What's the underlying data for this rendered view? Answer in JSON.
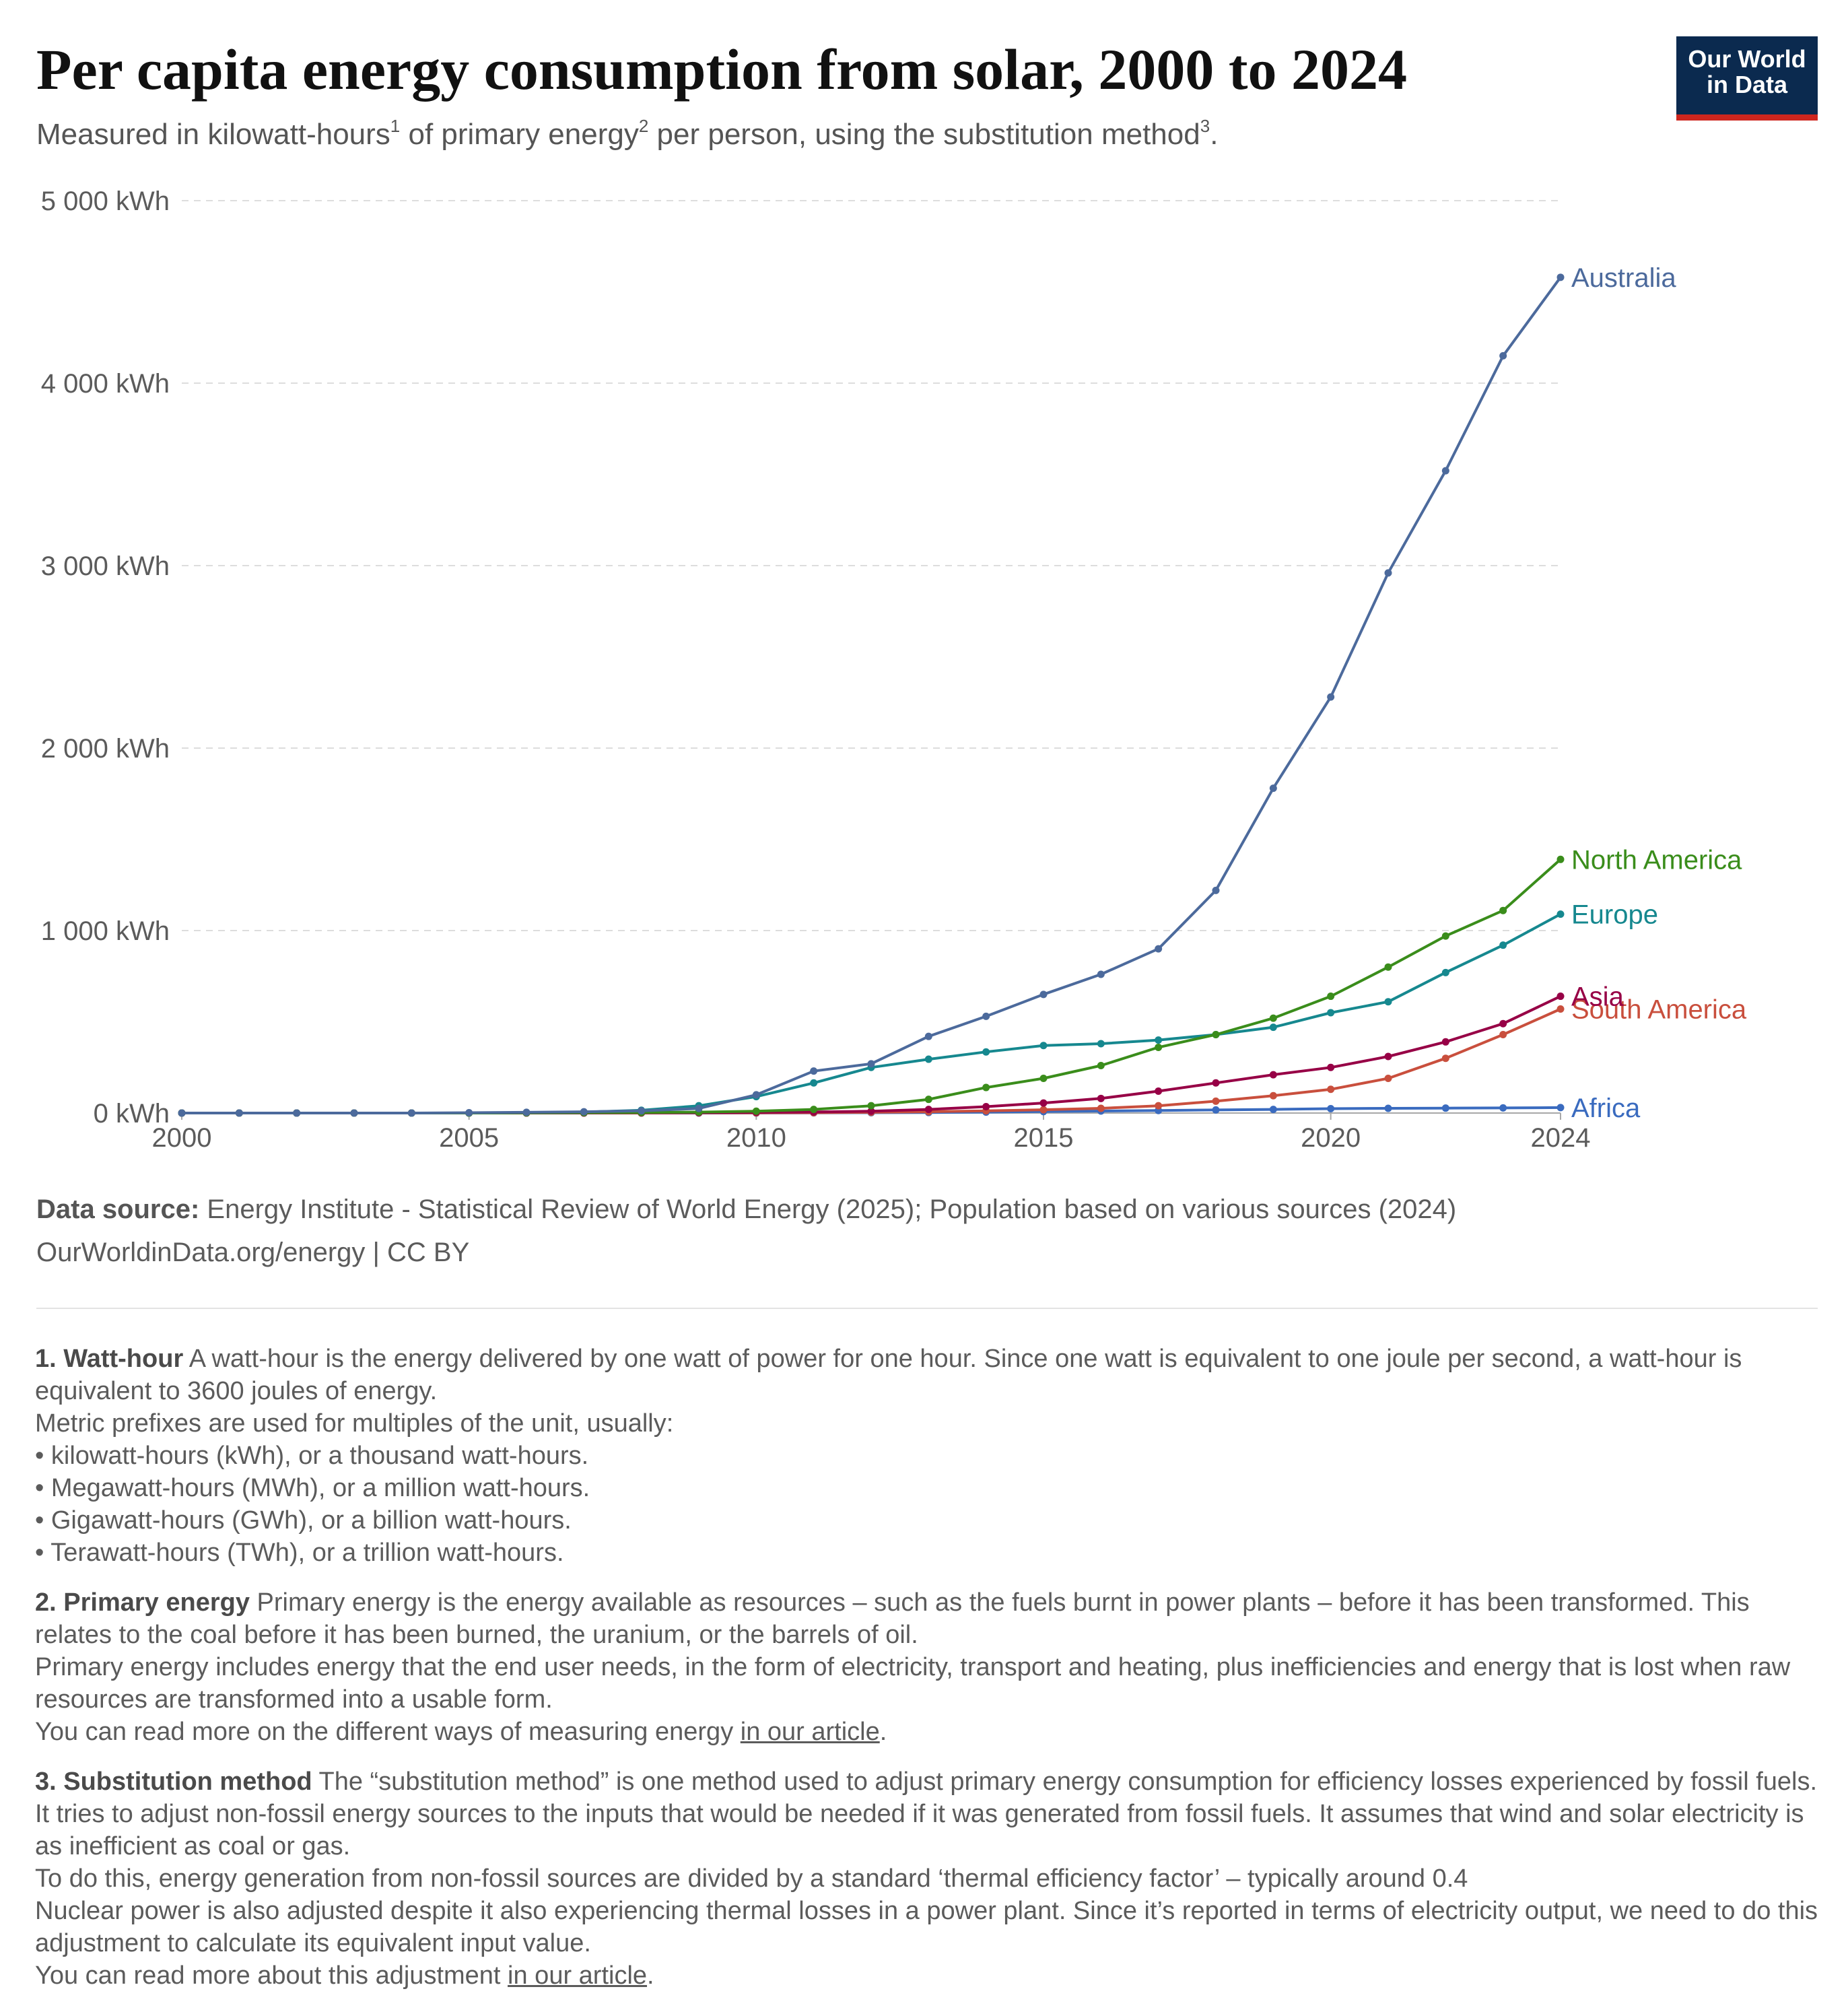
{
  "header": {
    "title": "Per capita energy consumption from solar, 2000 to 2024",
    "subtitle_parts": {
      "a": "Measured in kilowatt-hours",
      "sup1": "1",
      "b": " of primary energy",
      "sup2": "2",
      "c": " per person, using the substitution method",
      "sup3": "3",
      "d": "."
    }
  },
  "logo": {
    "line1": "Our World",
    "line2": "in Data"
  },
  "colors": {
    "Australia": "#4c6a9c",
    "North America": "#3a8d1b",
    "Europe": "#16888f",
    "Asia": "#970046",
    "South America": "#c94f3d",
    "Africa": "#3a6bbf",
    "logo_bg": "#0b2a4f",
    "logo_accent": "#ce261e"
  },
  "chart_data": {
    "type": "line",
    "title": "Per capita energy consumption from solar, 2000 to 2024",
    "ylabel": "",
    "xlabel": "",
    "unit": "kWh",
    "ylim": [
      0,
      5000
    ],
    "xlim": [
      2000,
      2024
    ],
    "grid": true,
    "y_ticks": [
      0,
      1000,
      2000,
      3000,
      4000,
      5000
    ],
    "y_tick_labels": [
      "0 kWh",
      "1 000 kWh",
      "2 000 kWh",
      "3 000 kWh",
      "4 000 kWh",
      "5 000 kWh"
    ],
    "x_ticks": [
      2000,
      2005,
      2010,
      2015,
      2020,
      2024
    ],
    "x_tick_labels": [
      "2000",
      "2005",
      "2010",
      "2015",
      "2020",
      "2024"
    ],
    "x": [
      2000,
      2001,
      2002,
      2003,
      2004,
      2005,
      2006,
      2007,
      2008,
      2009,
      2010,
      2011,
      2012,
      2013,
      2014,
      2015,
      2016,
      2017,
      2018,
      2019,
      2020,
      2021,
      2022,
      2023,
      2024
    ],
    "legend": "inline labels at line ends (right)",
    "series": [
      {
        "name": "Africa",
        "values": [
          0,
          0,
          0,
          0,
          0,
          0,
          0,
          0,
          0,
          0,
          0,
          1,
          2,
          3,
          5,
          8,
          11,
          14,
          17,
          20,
          24,
          26,
          27,
          28,
          30
        ]
      },
      {
        "name": "South America",
        "values": [
          0,
          0,
          0,
          0,
          0,
          0,
          0,
          0,
          0,
          1,
          1,
          2,
          4,
          7,
          12,
          18,
          26,
          40,
          65,
          95,
          130,
          190,
          300,
          430,
          570
        ]
      },
      {
        "name": "Asia",
        "values": [
          0,
          0,
          0,
          0,
          0,
          0,
          0,
          0,
          1,
          2,
          4,
          6,
          10,
          20,
          35,
          55,
          80,
          120,
          165,
          210,
          250,
          310,
          390,
          490,
          640
        ]
      },
      {
        "name": "Europe",
        "values": [
          0,
          0,
          0,
          0,
          0,
          0,
          2,
          5,
          15,
          40,
          90,
          165,
          250,
          295,
          335,
          370,
          380,
          400,
          430,
          470,
          550,
          610,
          770,
          920,
          1090
        ]
      },
      {
        "name": "North America",
        "values": [
          0,
          0,
          0,
          0,
          0,
          0,
          1,
          2,
          3,
          5,
          10,
          20,
          40,
          75,
          140,
          190,
          260,
          360,
          430,
          520,
          640,
          800,
          970,
          1110,
          1390
        ]
      },
      {
        "name": "Australia",
        "values": [
          0,
          0,
          0,
          0,
          0,
          2,
          4,
          7,
          12,
          25,
          100,
          230,
          270,
          420,
          530,
          650,
          760,
          900,
          1220,
          1780,
          2280,
          2960,
          3520,
          4150,
          4580
        ]
      }
    ]
  },
  "footer": {
    "source_label": "Data source:",
    "source_text": " Energy Institute - Statistical Review of World Energy (2025); Population based on various sources (2024)",
    "url_text": "OurWorldinData.org/energy | CC BY"
  },
  "notes": {
    "n1": {
      "head": "1. Watt-hour",
      "l1": " A watt-hour is the energy delivered by one watt of power for one hour. Since one watt is equivalent to one joule per second, a watt-hour is equivalent to 3600 joules of energy.",
      "l2": "Metric prefixes are used for multiples of the unit, usually:",
      "bullets": [
        "kilowatt-hours (kWh), or a thousand watt-hours.",
        "Megawatt-hours (MWh), or a million watt-hours.",
        "Gigawatt-hours (GWh), or a billion watt-hours.",
        "Terawatt-hours (TWh), or a trillion watt-hours."
      ]
    },
    "n2": {
      "head": "2. Primary energy",
      "l1": " Primary energy is the energy available as resources – such as the fuels burnt in power plants – before it has been transformed. This relates to the coal before it has been burned, the uranium, or the barrels of oil.",
      "l2": "Primary energy includes energy that the end user needs, in the form of electricity, transport and heating, plus inefficiencies and energy that is lost when raw resources are transformed into a usable form.",
      "l3_pre": "You can read more on the different ways of measuring energy ",
      "l3_link": "in our article",
      "l3_post": "."
    },
    "n3": {
      "head": "3. Substitution method",
      "l1": " The “substitution method” is one method used to adjust primary energy consumption for efficiency losses experienced by fossil fuels. It tries to adjust non-fossil energy sources to the inputs that would be needed if it was generated from fossil fuels. It assumes that wind and solar electricity is as inefficient as coal or gas.",
      "l2": "To do this, energy generation from non-fossil sources are divided by a standard ‘thermal efficiency factor’ – typically around 0.4",
      "l3": "Nuclear power is also adjusted despite it also experiencing thermal losses in a power plant. Since it’s reported in terms of electricity output, we need to do this adjustment to calculate its equivalent input value.",
      "l4_pre": "You can read more about this adjustment ",
      "l4_link": "in our article",
      "l4_post": "."
    }
  }
}
